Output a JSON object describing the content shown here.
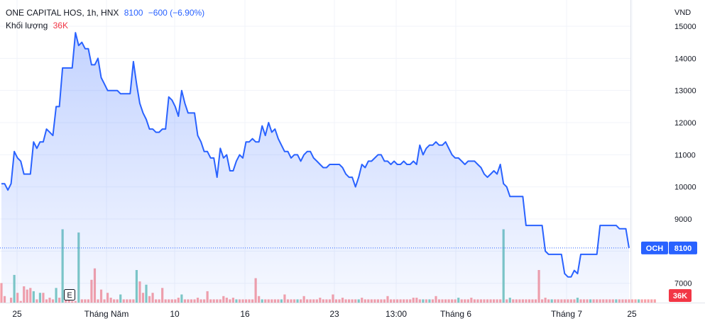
{
  "header": {
    "symbol_line": "ONE CAPITAL HOS, 1h, HNX",
    "price": "8100",
    "change": "−600 (−6.90%)",
    "volume_label": "Khối lượng",
    "volume_value": "36K",
    "currency": "VND"
  },
  "badges": {
    "symbol": "OCH",
    "price": "8100",
    "volume": "36K",
    "event": "E"
  },
  "colors": {
    "line": "#2962ff",
    "vol_up": "#80cbc4",
    "vol_down": "#f7a1a8",
    "grid": "#f0f3fa",
    "axis_text": "#131722"
  },
  "chart_data": {
    "type": "area",
    "currency": "VND",
    "ylim": [
      6950,
      15000
    ],
    "y_ticks": [
      7000,
      8000,
      9000,
      10000,
      11000,
      12000,
      13000,
      14000,
      15000
    ],
    "x_ticks": [
      "25",
      "Tháng Năm",
      "10",
      "16",
      "23",
      "13:00",
      "Tháng 6",
      "Tháng 7",
      "25"
    ],
    "last_price": 8100,
    "grid": true,
    "price": [
      10100,
      10100,
      9900,
      10100,
      11100,
      10900,
      10800,
      10400,
      10400,
      10400,
      11400,
      11200,
      11400,
      11400,
      11800,
      11700,
      11600,
      12500,
      12500,
      13700,
      13700,
      13700,
      13700,
      14800,
      14400,
      14500,
      14300,
      14300,
      13800,
      13800,
      14000,
      13400,
      13200,
      13000,
      13000,
      13000,
      13000,
      12900,
      12900,
      12900,
      12900,
      13900,
      13200,
      12600,
      12300,
      12100,
      11800,
      11800,
      11700,
      11700,
      11800,
      11800,
      12800,
      12700,
      12500,
      12200,
      13000,
      12600,
      12300,
      12300,
      12300,
      11600,
      11400,
      11100,
      11100,
      10900,
      10900,
      10300,
      11200,
      10900,
      11000,
      10500,
      10500,
      10800,
      11000,
      10900,
      11400,
      11400,
      11500,
      11400,
      11400,
      11900,
      11600,
      12000,
      11700,
      11800,
      11500,
      11300,
      11100,
      11100,
      10900,
      11000,
      11000,
      10800,
      11000,
      11100,
      11100,
      10900,
      10800,
      10700,
      10600,
      10600,
      10700,
      10700,
      10700,
      10700,
      10600,
      10400,
      10300,
      10300,
      10000,
      10300,
      10700,
      10600,
      10800,
      10800,
      10900,
      11000,
      11000,
      10800,
      10800,
      10700,
      10800,
      10700,
      10700,
      10800,
      10700,
      10700,
      10800,
      10700,
      11300,
      11000,
      11200,
      11300,
      11300,
      11400,
      11300,
      11300,
      11400,
      11200,
      11000,
      10900,
      10900,
      10800,
      10700,
      10800,
      10800,
      10800,
      10700,
      10600,
      10400,
      10300,
      10400,
      10500,
      10400,
      10700,
      10100,
      10000,
      9700,
      9700,
      9700,
      9700,
      9700,
      8800,
      8800,
      8800,
      8800,
      8800,
      8800,
      8000,
      7900,
      7900,
      7900,
      7900,
      7900,
      7300,
      7200,
      7200,
      7400,
      7300,
      7900,
      7900,
      7900,
      7900,
      7900,
      7900,
      8800,
      8800,
      8800,
      8800,
      8800,
      8800,
      8700,
      8700,
      8700,
      8100
    ],
    "volume_up": [
      0,
      0,
      0,
      0,
      1,
      0,
      0,
      0,
      0,
      0,
      1,
      0,
      1,
      0,
      0,
      0,
      0,
      1,
      0,
      1,
      0,
      0,
      0,
      0,
      1,
      0,
      0,
      0,
      0,
      0,
      0,
      0,
      0,
      0,
      0,
      0,
      0,
      1,
      0,
      0,
      0,
      0,
      1,
      0,
      0,
      1,
      0,
      0,
      0,
      0,
      0,
      0,
      0,
      0,
      0,
      0,
      1,
      0,
      0,
      0,
      0,
      0,
      0,
      0,
      0,
      0,
      0,
      0,
      0,
      0,
      0,
      0,
      0,
      1,
      0,
      0,
      0,
      0,
      0,
      0,
      0,
      1,
      0,
      0,
      0,
      0,
      0,
      1,
      0,
      0,
      0,
      0,
      1,
      0,
      0,
      0,
      0,
      0,
      0,
      0,
      0,
      0,
      0,
      0,
      0,
      0,
      0,
      0,
      0,
      0,
      0,
      1,
      0,
      0,
      0,
      0,
      0,
      0,
      0,
      0,
      0,
      0,
      0,
      0,
      0,
      0,
      0,
      0,
      0,
      0,
      0,
      1,
      0,
      1,
      0,
      0,
      0,
      0,
      0,
      0,
      0,
      0,
      1,
      0,
      0,
      0,
      0,
      0,
      0,
      0,
      0,
      0,
      0,
      0,
      0,
      0,
      1,
      0,
      1,
      0,
      0,
      0,
      0,
      0,
      0,
      0,
      0,
      0,
      0,
      0,
      0,
      1,
      0,
      0,
      0,
      0,
      0,
      0,
      0,
      1,
      0,
      0,
      0,
      1,
      0,
      0,
      0,
      0,
      0,
      0,
      0,
      1,
      0,
      0,
      0,
      0,
      0,
      0,
      1,
      0,
      0,
      0,
      0,
      0
    ],
    "volume": [
      24,
      8,
      0,
      6,
      34,
      12,
      2,
      20,
      16,
      18,
      14,
      4,
      12,
      12,
      4,
      6,
      4,
      18,
      6,
      90,
      4,
      4,
      2,
      2,
      86,
      4,
      4,
      4,
      28,
      42,
      4,
      16,
      4,
      12,
      6,
      4,
      4,
      10,
      4,
      4,
      4,
      4,
      40,
      26,
      12,
      22,
      8,
      12,
      4,
      4,
      18,
      4,
      4,
      4,
      4,
      6,
      10,
      4,
      4,
      4,
      4,
      6,
      4,
      4,
      14,
      4,
      4,
      4,
      4,
      8,
      6,
      4,
      6,
      4,
      4,
      4,
      4,
      4,
      4,
      30,
      8,
      4,
      4,
      4,
      4,
      4,
      4,
      4,
      10,
      4,
      4,
      4,
      4,
      4,
      8,
      4,
      4,
      4,
      4,
      6,
      4,
      4,
      4,
      10,
      4,
      4,
      6,
      4,
      4,
      4,
      4,
      4,
      6,
      4,
      4,
      4,
      4,
      4,
      4,
      4,
      8,
      4,
      4,
      4,
      4,
      4,
      4,
      4,
      6,
      6,
      4,
      4,
      4,
      4,
      4,
      8,
      4,
      4,
      4,
      4,
      4,
      4,
      6,
      4,
      4,
      4,
      6,
      4,
      4,
      4,
      4,
      4,
      4,
      4,
      4,
      4,
      90,
      4,
      6,
      4,
      4,
      4,
      4,
      4,
      4,
      4,
      4,
      40,
      4,
      6,
      4,
      4,
      4,
      4,
      4,
      4,
      4,
      4,
      4,
      6,
      4,
      4,
      4,
      4,
      4,
      4,
      4,
      4,
      4,
      4,
      4,
      4,
      4,
      4,
      4,
      4,
      4,
      4,
      4,
      4,
      4,
      4,
      4,
      4
    ]
  }
}
